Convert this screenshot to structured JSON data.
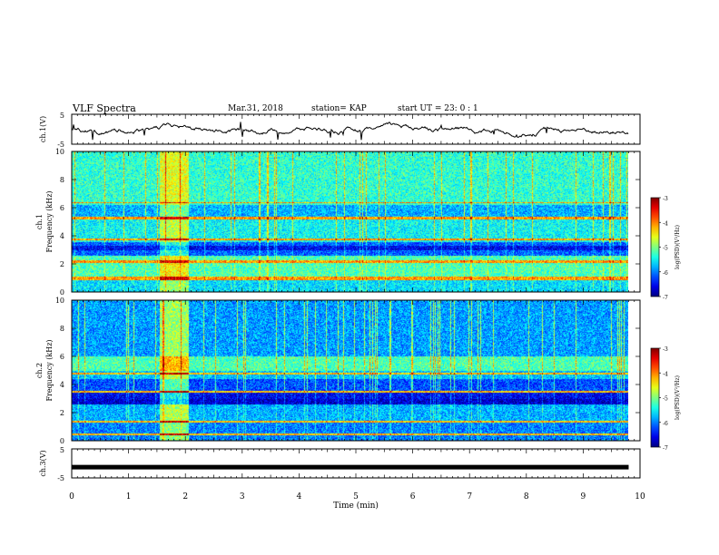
{
  "header": {
    "title": "VLF Spectra",
    "date": "Mar.31, 2018",
    "station": "station= KAP",
    "start": "start  UT =   23: 0  : 1"
  },
  "chart_data": [
    {
      "type": "line",
      "panel": "ch1-waveform",
      "ylabel": "ch.1(V)",
      "ylim": [
        -5,
        5
      ],
      "yticks": [
        "5",
        "-5"
      ],
      "xlim": [
        0,
        10
      ]
    },
    {
      "type": "heatmap",
      "panel": "ch1-spectrogram",
      "ylabel_top": "ch.1",
      "ylabel": "Frequency (kHz)",
      "ylim": [
        0,
        10
      ],
      "yticks": [
        "0",
        "2",
        "4",
        "6",
        "8",
        "10"
      ],
      "xlim": [
        0,
        10
      ],
      "data_end_min": 9.8,
      "colorbar": {
        "label": "log(PSD)(V²/Hz)",
        "range": [
          -7,
          -3
        ],
        "ticks": [
          "-3",
          "-4",
          "-5",
          "-6",
          "-7"
        ]
      }
    },
    {
      "type": "heatmap",
      "panel": "ch2-spectrogram",
      "ylabel_top": "ch.2",
      "ylabel": "Frequency (kHz)",
      "ylim": [
        0,
        10
      ],
      "yticks": [
        "0",
        "2",
        "4",
        "6",
        "8",
        "10"
      ],
      "xlim": [
        0,
        10
      ],
      "data_end_min": 9.8,
      "colorbar": {
        "label": "log(PSD)(V²/Hz)",
        "range": [
          -7,
          -3
        ],
        "ticks": [
          "-3",
          "-4",
          "-5",
          "-6",
          "-7"
        ]
      }
    },
    {
      "type": "line",
      "panel": "ch3-waveform",
      "ylabel": "ch.3(V)",
      "ylim": [
        -5,
        5
      ],
      "yticks": [
        "5",
        "-5"
      ],
      "values_constant": -1.3,
      "xlim": [
        0,
        10
      ],
      "xlabel": "Time (min)",
      "xticks": [
        "0",
        "1",
        "2",
        "3",
        "4",
        "5",
        "6",
        "7",
        "8",
        "9",
        "10"
      ]
    }
  ]
}
